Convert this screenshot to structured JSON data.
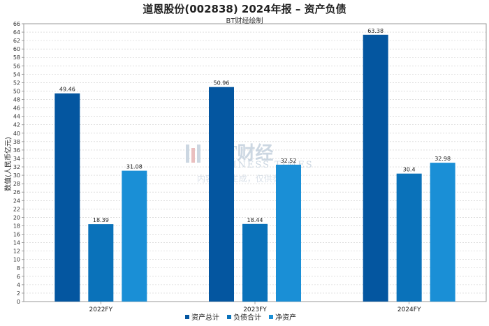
{
  "title": "道恩股份(002838) 2024年报 – 资产负债",
  "subtitle": "BT财经绘制",
  "watermark": {
    "brand": "BT财经",
    "english": "BUSINESS TIMES",
    "note": "内容由AI生成，仅供参考"
  },
  "colors": {
    "资产总计": "#0456a0",
    "负债合计": "#0a72ba",
    "净资产": "#1a8fd6"
  },
  "chart_data": {
    "type": "bar",
    "categories": [
      "2022FY",
      "2023FY",
      "2024FY"
    ],
    "series": [
      {
        "name": "资产总计",
        "values": [
          49.46,
          50.96,
          63.38
        ],
        "labels": [
          "49.46",
          "50.96",
          "63.38"
        ]
      },
      {
        "name": "负债合计",
        "values": [
          18.39,
          18.44,
          30.4
        ],
        "labels": [
          "18.39",
          "18.44",
          "30.4"
        ]
      },
      {
        "name": "净资产",
        "values": [
          31.08,
          32.52,
          32.98
        ],
        "labels": [
          "31.08",
          "32.52",
          "32.98"
        ]
      }
    ],
    "ylabel": "数值(人民币亿元)",
    "xlabel": "",
    "ylim": [
      0,
      66
    ],
    "ytick_step": 2,
    "grid": true,
    "legend_position": "bottom-center"
  }
}
